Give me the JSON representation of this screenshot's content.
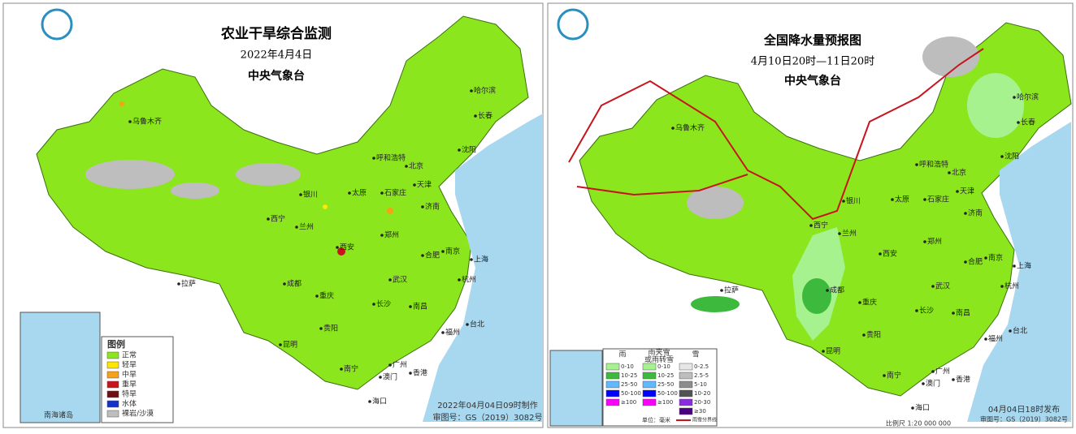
{
  "left_map": {
    "title": "农业干旱综合监测",
    "date": "2022年4月4日",
    "issuer": "中央气象台",
    "cities": [
      "乌鲁木齐",
      "哈尔滨",
      "长春",
      "沈阳",
      "呼和浩特",
      "北京",
      "天津",
      "石家庄",
      "太原",
      "银川",
      "西宁",
      "兰州",
      "济南",
      "郑州",
      "西安",
      "合肥",
      "南京",
      "上海",
      "杭州",
      "武汉",
      "成都",
      "重庆",
      "长沙",
      "南昌",
      "拉萨",
      "贵阳",
      "昆明",
      "福州",
      "台北",
      "广州",
      "南宁",
      "香港",
      "澳门",
      "海口"
    ],
    "inset_label": "南海诸岛",
    "legend": {
      "title": "图例",
      "items": [
        {
          "label": "正常",
          "color": "#8be61e"
        },
        {
          "label": "轻旱",
          "color": "#ffe600"
        },
        {
          "label": "中旱",
          "color": "#f7a11a"
        },
        {
          "label": "重旱",
          "color": "#c8141e"
        },
        {
          "label": "特旱",
          "color": "#6e0f14"
        },
        {
          "label": "水体",
          "color": "#1432c8"
        },
        {
          "label": "裸岩/沙漠",
          "color": "#bebebe"
        }
      ]
    },
    "made": "2022年04月04日09时制作",
    "approval": "审图号：GS（2019）3082号"
  },
  "right_map": {
    "title": "全国降水量预报图",
    "date": "4月10日20时—11日20时",
    "issuer": "中央气象台",
    "cities": [
      "乌鲁木齐",
      "哈尔滨",
      "长春",
      "沈阳",
      "呼和浩特",
      "北京",
      "天津",
      "石家庄",
      "太原",
      "银川",
      "西宁",
      "兰州",
      "济南",
      "郑州",
      "西安",
      "合肥",
      "南京",
      "上海",
      "杭州",
      "武汉",
      "成都",
      "重庆",
      "长沙",
      "南昌",
      "拉萨",
      "贵阳",
      "昆明",
      "福州",
      "台北",
      "广州",
      "南宁",
      "香港",
      "澳门",
      "海口"
    ],
    "legend": {
      "rain": {
        "title": "雨",
        "items": [
          {
            "label": "0-10",
            "color": "#a6f28f"
          },
          {
            "label": "10-25",
            "color": "#3dba3d"
          },
          {
            "label": "25-50",
            "color": "#61b8ff"
          },
          {
            "label": "50-100",
            "color": "#0000fe"
          },
          {
            "label": "≥100",
            "color": "#fa00fa"
          }
        ]
      },
      "sleet": {
        "title": "雨夹雪\n或雨转雪",
        "items": [
          {
            "label": "0-10",
            "color": "#a6f28f"
          },
          {
            "label": "10-25",
            "color": "#3dba3d"
          },
          {
            "label": "25-50",
            "color": "#61b8ff"
          },
          {
            "label": "50-100",
            "color": "#0000fe"
          },
          {
            "label": "≥100",
            "color": "#fa00fa"
          }
        ]
      },
      "snow": {
        "title": "雪",
        "items": [
          {
            "label": "0-2.5",
            "color": "#e6e6e6"
          },
          {
            "label": "2.5-5",
            "color": "#bdbdbd"
          },
          {
            "label": "5-10",
            "color": "#8c8c8c"
          },
          {
            "label": "10-20",
            "color": "#525252"
          },
          {
            "label": "20-30",
            "color": "#8a2be2"
          },
          {
            "label": "≥30",
            "color": "#4b0082"
          }
        ]
      },
      "unit": "单位：毫米",
      "line_label": "雨雪分界线"
    },
    "published": "04月04日18时发布",
    "approval": "审图号：GS（2019）3082号",
    "scale": "比例尺 1:20 000 000"
  }
}
